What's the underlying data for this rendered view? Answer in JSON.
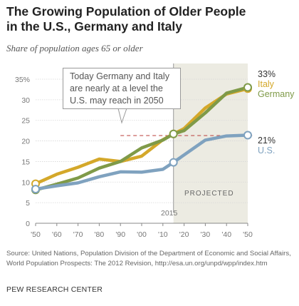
{
  "chart_data": {
    "type": "line",
    "title_line1": "The Growing Population of Older People",
    "title_line2": "in the U.S., Germany and Italy",
    "subtitle": "Share of population ages 65 or older",
    "x": [
      1950,
      1955,
      1960,
      1965,
      1970,
      1975,
      1980,
      1985,
      1990,
      1995,
      2000,
      2005,
      2010,
      2015,
      2020,
      2025,
      2030,
      2035,
      2040,
      2045,
      2050
    ],
    "x_tick_values": [
      1950,
      1960,
      1970,
      1980,
      1990,
      2000,
      2010,
      2020,
      2030,
      2040,
      2050
    ],
    "x_tick_labels": [
      "'50",
      "'60",
      "'70",
      "'80",
      "'90",
      "'00",
      "'10",
      "'20",
      "'30",
      "'40",
      "'50"
    ],
    "y_tick_values": [
      0,
      5,
      10,
      15,
      20,
      25,
      30,
      35
    ],
    "y_tick_labels": [
      "0",
      "5",
      "10",
      "15",
      "20",
      "25",
      "30",
      "35%"
    ],
    "ylim": [
      0,
      35
    ],
    "xlim": [
      1950,
      2050
    ],
    "series": [
      {
        "name": "Italy",
        "color": "#d4a82a",
        "x": [
          1950,
          1960,
          1970,
          1980,
          1990,
          2000,
          2010,
          2015,
          2020,
          2030,
          2040,
          2050
        ],
        "values": [
          9.6,
          11.9,
          13.6,
          15.6,
          15.0,
          16.3,
          20.3,
          21.7,
          23.0,
          28.0,
          31.4,
          32.7
        ]
      },
      {
        "name": "Germany",
        "color": "#7f9a48",
        "x": [
          1950,
          1960,
          1970,
          1980,
          1990,
          2000,
          2010,
          2015,
          2020,
          2030,
          2040,
          2050
        ],
        "values": [
          8.1,
          9.5,
          11.0,
          13.4,
          15.0,
          18.3,
          20.2,
          21.7,
          22.5,
          26.8,
          31.6,
          33.0
        ]
      },
      {
        "name": "U.S.",
        "color": "#7fa2bf",
        "x": [
          1950,
          1960,
          1970,
          1980,
          1990,
          2000,
          2010,
          2015,
          2020,
          2030,
          2040,
          2050
        ],
        "values": [
          8.3,
          9.1,
          9.8,
          11.3,
          12.5,
          12.4,
          13.1,
          14.8,
          16.6,
          20.2,
          21.2,
          21.4
        ]
      }
    ],
    "end_labels": {
      "italy_germany_pct": "33%",
      "us_pct": "21%",
      "italy": "Italy",
      "germany": "Germany",
      "us": "U.S."
    },
    "reference_line": {
      "value": 21.3,
      "color": "#c0504d"
    },
    "projected": {
      "from": 2015,
      "to": 2050,
      "label": "PROJECTED",
      "year_label": "2015"
    },
    "annotation": "Today Germany and Italy are nearly at a level the U.S. may reach in 2050",
    "source": "Source: United Nations, Population Division of the Department of Economic and Social Affairs, World Population Prospects: The 2012 Revision, http://esa.un.org/unpd/wpp/index.htm",
    "brand": "PEW RESEARCH CENTER"
  }
}
